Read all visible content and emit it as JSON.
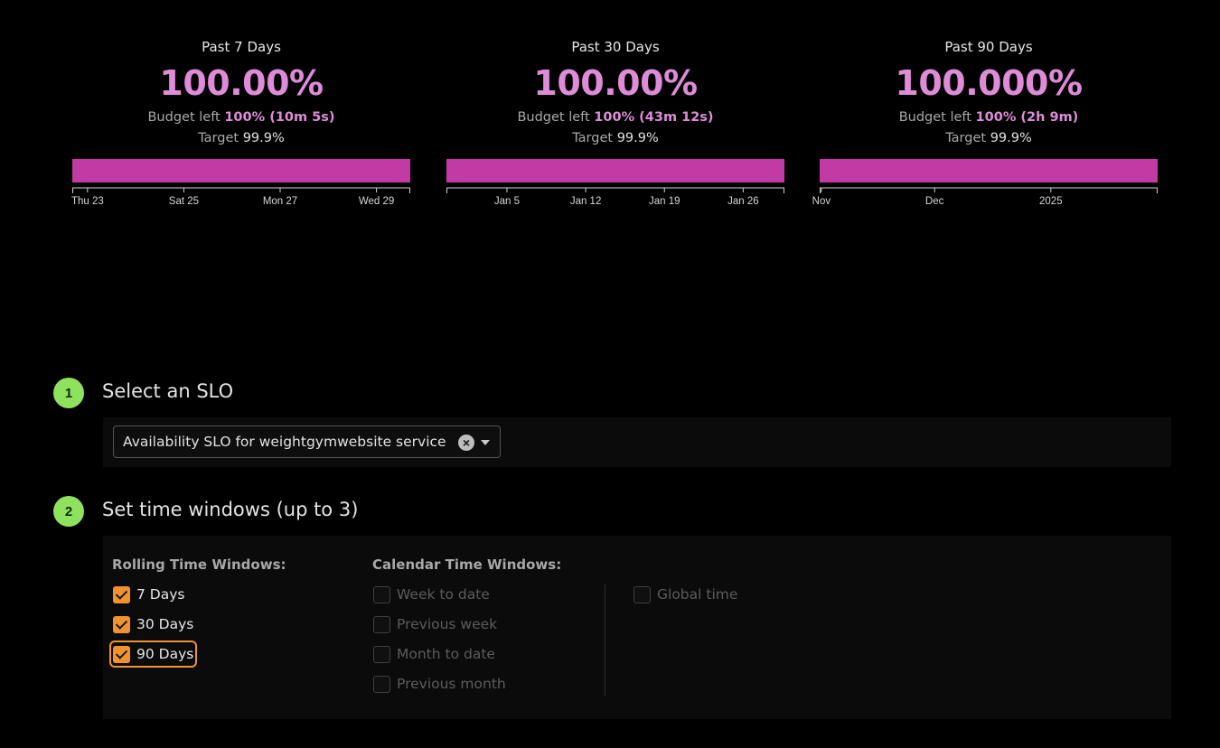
{
  "colors": {
    "background": "#000000",
    "value_accent": "#de8bd8",
    "bar_fill": "#c23ba5",
    "step_badge": "#8fe25e",
    "checkbox_checked": "#f0922f"
  },
  "panels": [
    {
      "title": "Past 7 Days",
      "value": "100.00%",
      "budget_label": "Budget left",
      "budget_value": "100% (10m 5s)",
      "target_label": "Target",
      "target_value": "99.9%",
      "status_fill": 1.0,
      "ticks": [
        {
          "label": "Thu 23",
          "pos": 0.045
        },
        {
          "label": "Sat 25",
          "pos": 0.33
        },
        {
          "label": "Mon 27",
          "pos": 0.615
        },
        {
          "label": "Wed 29",
          "pos": 0.9
        }
      ]
    },
    {
      "title": "Past 30 Days",
      "value": "100.00%",
      "budget_label": "Budget left",
      "budget_value": "100% (43m 12s)",
      "target_label": "Target",
      "target_value": "99.9%",
      "status_fill": 1.0,
      "ticks": [
        {
          "label": "Jan 5",
          "pos": 0.179
        },
        {
          "label": "Jan 12",
          "pos": 0.412
        },
        {
          "label": "Jan 19",
          "pos": 0.645
        },
        {
          "label": "Jan 26",
          "pos": 0.878
        }
      ]
    },
    {
      "title": "Past 90 Days",
      "value": "100.000%",
      "budget_label": "Budget left",
      "budget_value": "100% (2h 9m)",
      "target_label": "Target",
      "target_value": "99.9%",
      "status_fill": 1.0,
      "ticks": [
        {
          "label": "Nov",
          "pos": 0.005
        },
        {
          "label": "Dec",
          "pos": 0.34
        },
        {
          "label": "2025",
          "pos": 0.684
        }
      ]
    }
  ],
  "step1": {
    "number": "1",
    "title": "Select an SLO",
    "select_value": "Availability SLO for weightgymwebsite service",
    "clear_glyph": "×"
  },
  "step2": {
    "number": "2",
    "title": "Set time windows (up to 3)",
    "rolling_label": "Rolling Time Windows:",
    "calendar_label": "Calendar Time Windows:",
    "rolling": [
      {
        "label": "7 Days",
        "checked": true
      },
      {
        "label": "30 Days",
        "checked": true
      },
      {
        "label": "90 Days",
        "checked": true,
        "focused": true
      }
    ],
    "calendar": [
      {
        "label": "Week to date",
        "checked": false
      },
      {
        "label": "Previous week",
        "checked": false
      },
      {
        "label": "Month to date",
        "checked": false
      },
      {
        "label": "Previous month",
        "checked": false
      }
    ],
    "global": {
      "label": "Global time",
      "checked": false
    }
  }
}
